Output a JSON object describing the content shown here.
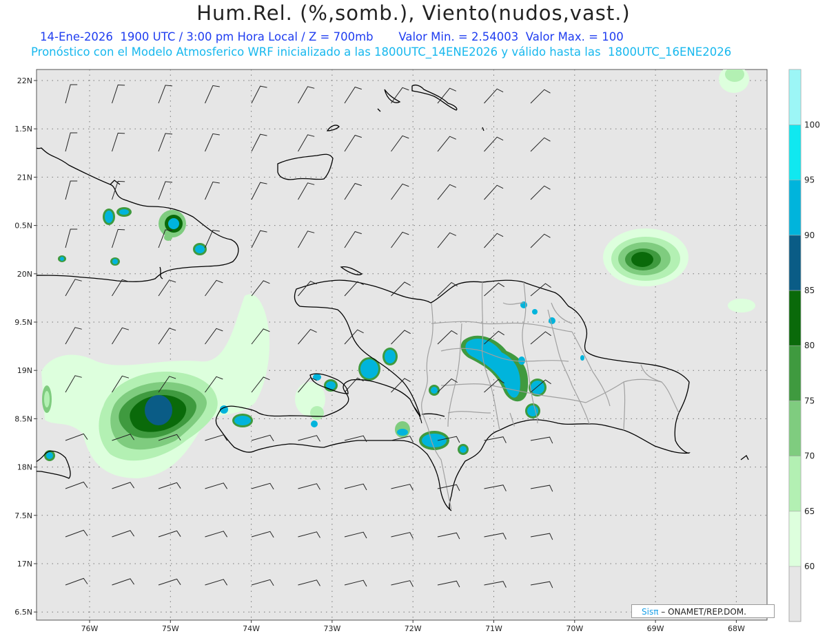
{
  "header": {
    "title": "Hum.Rel. (%,somb.), Viento(nudos,vast.)",
    "date_line": "14-Ene-2026  1900 UTC / 3:00 pm Hora Local / Z = 700mb",
    "min_label": "Valor Min. = 2.54003",
    "max_label": "Valor Max. = 100",
    "model_line": "Pronóstico con el Modelo Atmosferico WRF inicializado a las 1800UTC_14ENE2026 y válido hasta las  1800UTC_16ENE2026"
  },
  "map": {
    "lat_labels": [
      "22N",
      "1.5N",
      "21N",
      "0.5N",
      "20N",
      "9.5N",
      "19N",
      "8.5N",
      "18N",
      "7.5N",
      "17N",
      "6.5N"
    ],
    "lon_labels": [
      "76W",
      "75W",
      "74W",
      "73W",
      "72W",
      "71W",
      "70W",
      "69W",
      "68W"
    ],
    "background_color": "#e6e6e6",
    "coast_color": "#000000",
    "border_color": "#a0a0a0"
  },
  "colorbar": {
    "labels": [
      "60",
      "65",
      "70",
      "75",
      "80",
      "85",
      "90",
      "95",
      "100"
    ],
    "colors": [
      "#ddffdd",
      "#b3f0b3",
      "#7fcc7f",
      "#3f9a3f",
      "#0a6a0a",
      "#0a5c86",
      "#00b4dc",
      "#10e8f0",
      "#9cf6f6"
    ]
  },
  "credit": {
    "brand": "Sisπ",
    "org": "– ONAMET/REP.DOM."
  }
}
